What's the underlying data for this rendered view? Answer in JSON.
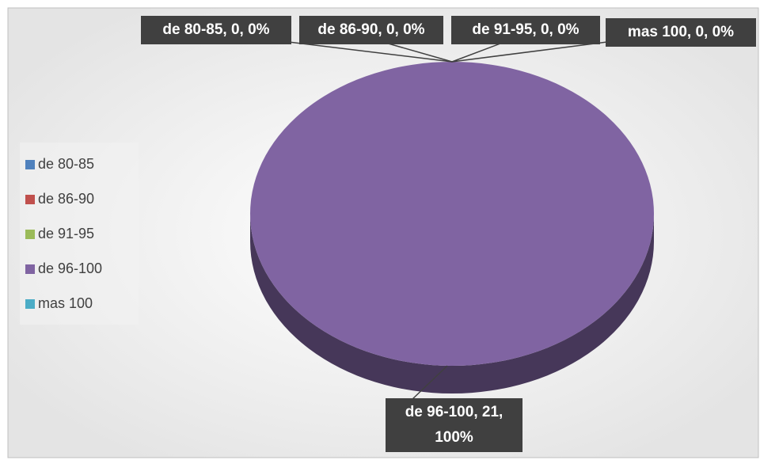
{
  "chart_data": {
    "type": "pie",
    "categories": [
      "de 80-85",
      "de 86-90",
      "de 91-95",
      "de 96-100",
      "mas 100"
    ],
    "values": [
      0,
      0,
      0,
      21,
      0
    ],
    "value_labels": [
      "de 80-85, 0, 0%",
      "de 86-90, 0, 0%",
      "de 91-95, 0, 0%",
      "de 96-100, 21, 100%",
      "mas 100, 0, 0%"
    ],
    "colors": [
      "#4f81bd",
      "#c0504d",
      "#9bbb59",
      "#8064a2",
      "#4bacc6"
    ],
    "legend": "left"
  }
}
